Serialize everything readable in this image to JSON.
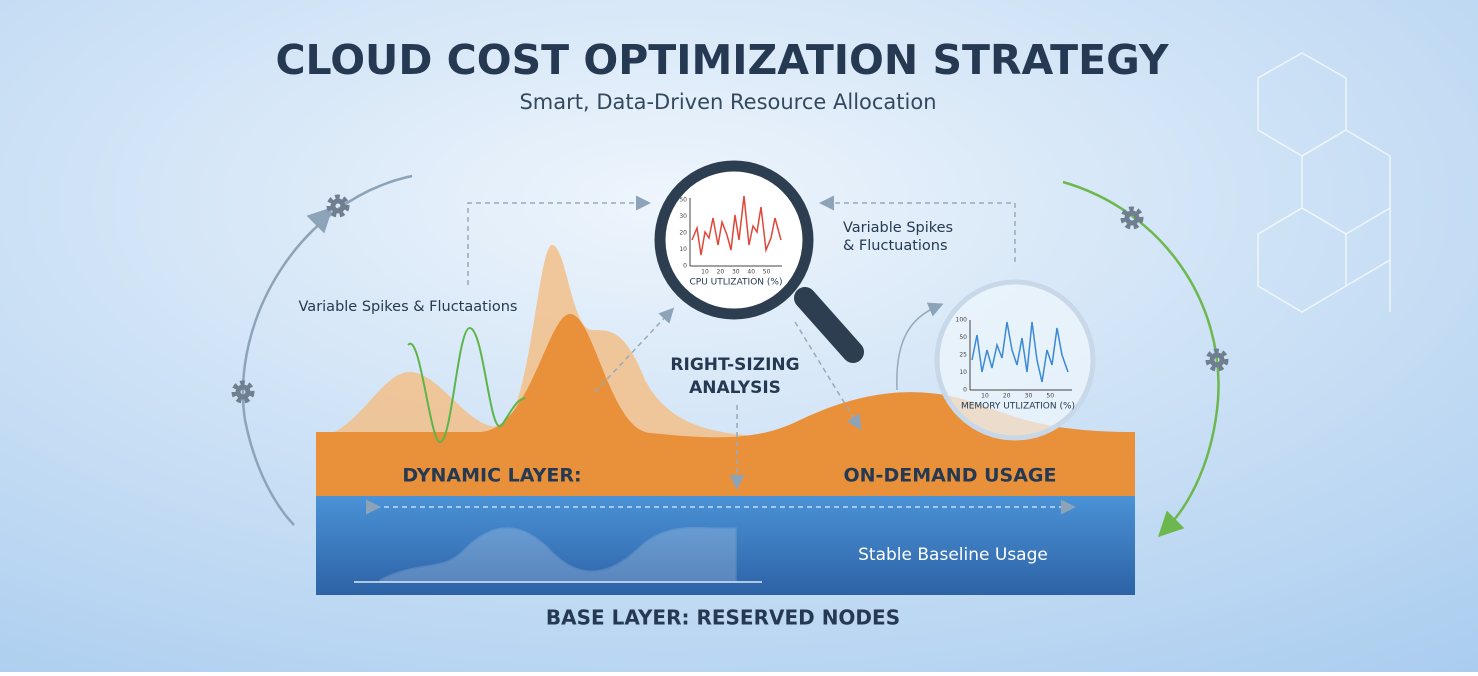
{
  "header": {
    "title": "CLOUD COST OPTIMIZATION STRATEGY",
    "subtitle": "Smart, Data-Driven Resource Allocation"
  },
  "left_note": "Variable Spikes & Fluctaations",
  "right_note": {
    "lines": [
      "Variable Spikes",
      "& Fluctuations"
    ]
  },
  "cpu_chart": {
    "label": "CPU UTLIZATION (%)",
    "yticks": [
      "50",
      "30",
      "20",
      "10",
      "0"
    ],
    "xticks": [
      "10",
      "20",
      "30",
      "40",
      "50"
    ]
  },
  "memory_chart": {
    "label": "MEMORY UTLIZATION (%)",
    "yticks": [
      "100",
      "50",
      "25",
      "10",
      "0"
    ],
    "xticks": [
      "10",
      "20",
      "30",
      "50"
    ]
  },
  "analysis": {
    "lines": [
      "RIGHT-SIZING",
      "ANALYSIS"
    ]
  },
  "dynamic_layer": {
    "label": "DYNAMIC LAYER:",
    "usage": "ON-DEMAND USAGE"
  },
  "base_layer": {
    "usage": "Stable Baseline Usage",
    "label": "BASE LAYER: RESERVED NODES"
  }
}
